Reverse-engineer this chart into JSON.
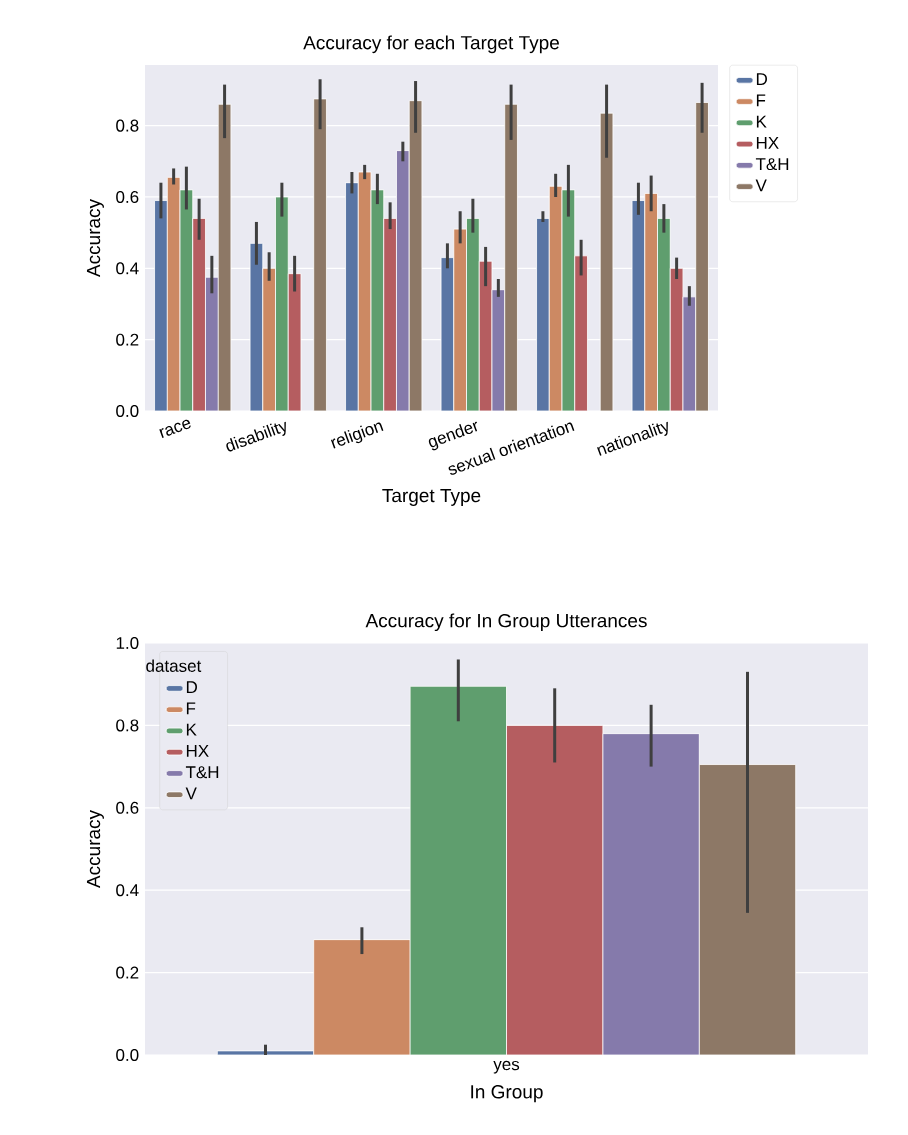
{
  "chart_data": [
    {
      "type": "bar",
      "title": "Accuracy for each Target Type",
      "xlabel": "Target Type",
      "ylabel": "Accuracy",
      "categories": [
        "race",
        "disability",
        "religion",
        "gender",
        "sexual orientation",
        "nationality"
      ],
      "ylim": [
        0,
        0.97
      ],
      "yticks": [
        {
          "value": 0,
          "label": "0.0"
        },
        {
          "value": 0.2,
          "label": "0.2"
        },
        {
          "value": 0.4,
          "label": "0.4"
        },
        {
          "value": 0.6,
          "label": "0.6"
        },
        {
          "value": 0.8,
          "label": "0.8"
        }
      ],
      "grid": "y",
      "legend": "right",
      "series": [
        {
          "name": "D",
          "color": "#5975a4",
          "values": [
            0.59,
            0.47,
            0.64,
            0.43,
            0.54,
            0.59
          ],
          "errors": [
            [
              0.54,
              0.64
            ],
            [
              0.41,
              0.53
            ],
            [
              0.61,
              0.67
            ],
            [
              0.4,
              0.47
            ],
            [
              0.53,
              0.56
            ],
            [
              0.55,
              0.64
            ]
          ]
        },
        {
          "name": "F",
          "color": "#cc8963",
          "values": [
            0.655,
            0.4,
            0.67,
            0.51,
            0.63,
            0.61
          ],
          "errors": [
            [
              0.635,
              0.68
            ],
            [
              0.365,
              0.445
            ],
            [
              0.65,
              0.69
            ],
            [
              0.47,
              0.56
            ],
            [
              0.6,
              0.665
            ],
            [
              0.56,
              0.66
            ]
          ]
        },
        {
          "name": "K",
          "color": "#5f9e6e",
          "values": [
            0.62,
            0.6,
            0.62,
            0.54,
            0.62,
            0.54
          ],
          "errors": [
            [
              0.565,
              0.685
            ],
            [
              0.545,
              0.64
            ],
            [
              0.58,
              0.665
            ],
            [
              0.5,
              0.595
            ],
            [
              0.545,
              0.69
            ],
            [
              0.5,
              0.58
            ]
          ]
        },
        {
          "name": "HX",
          "color": "#b55d60",
          "values": [
            0.54,
            0.385,
            0.54,
            0.42,
            0.435,
            0.4
          ],
          "errors": [
            [
              0.48,
              0.595
            ],
            [
              0.335,
              0.435
            ],
            [
              0.51,
              0.585
            ],
            [
              0.35,
              0.46
            ],
            [
              0.38,
              0.48
            ],
            [
              0.37,
              0.43
            ]
          ]
        },
        {
          "name": "T&H",
          "color": "#857aab",
          "values": [
            0.375,
            null,
            0.73,
            0.34,
            null,
            0.32
          ],
          "errors": [
            [
              0.33,
              0.435
            ],
            null,
            [
              0.7,
              0.755
            ],
            [
              0.32,
              0.37
            ],
            null,
            [
              0.295,
              0.35
            ]
          ]
        },
        {
          "name": "V",
          "color": "#8d7866",
          "values": [
            0.86,
            0.875,
            0.87,
            0.86,
            0.835,
            0.865
          ],
          "errors": [
            [
              0.765,
              0.915
            ],
            [
              0.79,
              0.93
            ],
            [
              0.78,
              0.925
            ],
            [
              0.76,
              0.915
            ],
            [
              0.71,
              0.915
            ],
            [
              0.78,
              0.92
            ]
          ]
        }
      ]
    },
    {
      "type": "bar",
      "title": "Accuracy for In Group Utterances",
      "xlabel": "In Group",
      "ylabel": "Accuracy",
      "legend_title": "dataset",
      "categories": [
        "yes"
      ],
      "ylim": [
        0,
        1.0
      ],
      "yticks": [
        {
          "value": 0,
          "label": "0.0"
        },
        {
          "value": 0.2,
          "label": "0.2"
        },
        {
          "value": 0.4,
          "label": "0.4"
        },
        {
          "value": 0.6,
          "label": "0.6"
        },
        {
          "value": 0.8,
          "label": "0.8"
        },
        {
          "value": 1.0,
          "label": "1.0"
        }
      ],
      "grid": "y",
      "legend": "top left",
      "series": [
        {
          "name": "D",
          "color": "#5975a4",
          "values": [
            0.01
          ],
          "errors": [
            [
              0.0,
              0.025
            ]
          ]
        },
        {
          "name": "F",
          "color": "#cc8963",
          "values": [
            0.28
          ],
          "errors": [
            [
              0.245,
              0.31
            ]
          ]
        },
        {
          "name": "K",
          "color": "#5f9e6e",
          "values": [
            0.895
          ],
          "errors": [
            [
              0.81,
              0.96
            ]
          ]
        },
        {
          "name": "HX",
          "color": "#b55d60",
          "values": [
            0.8
          ],
          "errors": [
            [
              0.71,
              0.89
            ]
          ]
        },
        {
          "name": "T&H",
          "color": "#857aab",
          "values": [
            0.78
          ],
          "errors": [
            [
              0.7,
              0.85
            ]
          ]
        },
        {
          "name": "V",
          "color": "#8d7866",
          "values": [
            0.705
          ],
          "errors": [
            [
              0.345,
              0.93
            ]
          ]
        }
      ]
    }
  ]
}
